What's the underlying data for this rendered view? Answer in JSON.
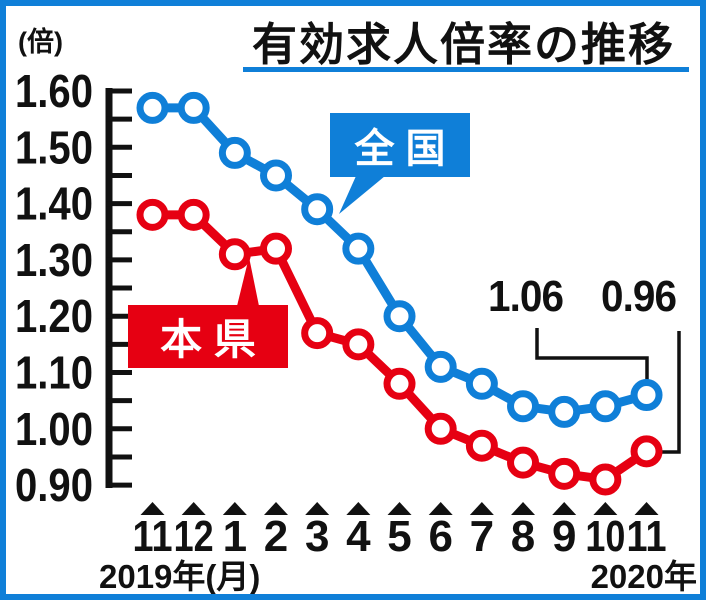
{
  "title": "有効求人倍率の推移",
  "colors": {
    "frame_blue": "#0f7fd8",
    "national_blue": "#0f7fd8",
    "prefecture_red": "#e60012",
    "text_black": "#111111"
  },
  "y_axis": {
    "unit_label": "(倍)",
    "tick_labels": [
      "1.60",
      "1.50",
      "1.40",
      "1.30",
      "1.20",
      "1.10",
      "1.00",
      "0.90"
    ]
  },
  "x_axis": {
    "months": [
      "11",
      "12",
      "1",
      "2",
      "3",
      "4",
      "5",
      "6",
      "7",
      "8",
      "9",
      "10",
      "11"
    ],
    "left_note": "2019年(月)",
    "right_note": "2020年"
  },
  "series_labels": {
    "national": "全 国",
    "prefecture": "本 県"
  },
  "end_values": {
    "national": "1.06",
    "prefecture": "0.96"
  },
  "chart_data": {
    "type": "line",
    "title": "有効求人倍率の推移",
    "unit": "倍",
    "categories": [
      "2019-11",
      "2019-12",
      "2020-1",
      "2020-2",
      "2020-3",
      "2020-4",
      "2020-5",
      "2020-6",
      "2020-7",
      "2020-8",
      "2020-9",
      "2020-10",
      "2020-11"
    ],
    "ylim": [
      0.9,
      1.6
    ],
    "y_major_step": 0.1,
    "y_minor_step": 0.05,
    "grid": false,
    "legend_position": "inline-callouts",
    "series": [
      {
        "name": "全国",
        "color": "#0f7fd8",
        "values": [
          1.57,
          1.57,
          1.49,
          1.45,
          1.39,
          1.32,
          1.2,
          1.11,
          1.08,
          1.04,
          1.03,
          1.04,
          1.06
        ],
        "end_label": "1.06"
      },
      {
        "name": "本県",
        "color": "#e60012",
        "values": [
          1.38,
          1.38,
          1.31,
          1.32,
          1.17,
          1.15,
          1.08,
          1.0,
          0.97,
          0.94,
          0.92,
          0.91,
          0.96
        ],
        "end_label": "0.96"
      }
    ],
    "annotations": [
      {
        "text": "1.06",
        "series": "全国",
        "category": "2020-11"
      },
      {
        "text": "0.96",
        "series": "本県",
        "category": "2020-11"
      }
    ]
  }
}
